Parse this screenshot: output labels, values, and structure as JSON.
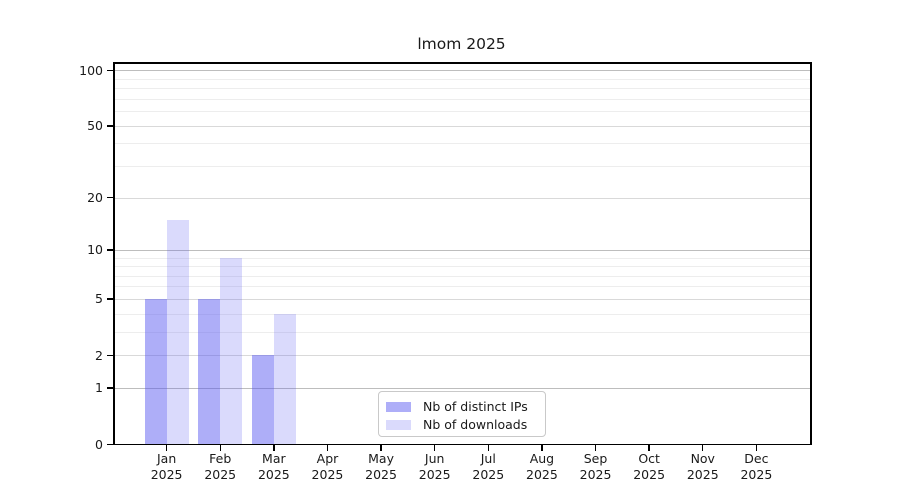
{
  "figure": {
    "title": "lmom 2025"
  },
  "chart_data": {
    "type": "bar",
    "title": "lmom 2025",
    "xlabel": "",
    "ylabel": "",
    "categories": [
      "Jan 2025",
      "Feb 2025",
      "Mar 2025",
      "Apr 2025",
      "May 2025",
      "Jun 2025",
      "Jul 2025",
      "Aug 2025",
      "Sep 2025",
      "Oct 2025",
      "Nov 2025",
      "Dec 2025"
    ],
    "series": [
      {
        "name": "Nb of distinct IPs",
        "color": "rgba(85,85,240,0.48)",
        "values": [
          5,
          5,
          2,
          0,
          0,
          0,
          0,
          0,
          0,
          0,
          0,
          0
        ]
      },
      {
        "name": "Nb of downloads",
        "color": "rgba(85,85,240,0.22)",
        "values": [
          15,
          9,
          4,
          0,
          0,
          0,
          0,
          0,
          0,
          0,
          0,
          0
        ]
      }
    ],
    "yscale": "log1p",
    "ylim": [
      0,
      110
    ],
    "yticks_major": [
      0,
      1,
      2,
      5,
      10,
      20,
      50,
      100
    ],
    "yticks_minor": [
      3,
      4,
      6,
      7,
      8,
      9,
      30,
      40,
      60,
      70,
      80,
      90
    ],
    "grid": true,
    "legend_position": "lower center"
  },
  "colors": {
    "grid_pow10": "#bdbdbd",
    "grid_major": "#d9d9d9",
    "grid_minor": "#ededed",
    "spine": "#000000",
    "text": "#1a1a1a"
  }
}
